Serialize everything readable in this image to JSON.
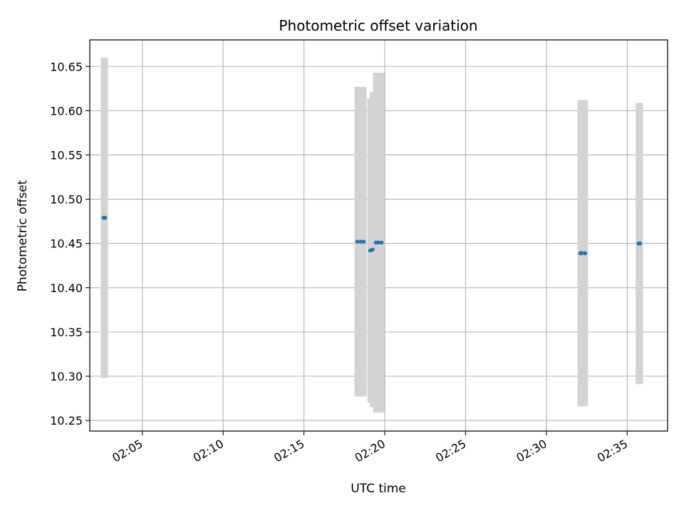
{
  "chart_data": {
    "type": "scatter",
    "title": "Photometric offset variation",
    "xlabel": "UTC time",
    "ylabel": "Photometric offset",
    "xlim": [
      "02:01:45",
      "02:37:30"
    ],
    "ylim": [
      10.238,
      10.68
    ],
    "x_ticks": [
      "02:05",
      "02:10",
      "02:15",
      "02:20",
      "02:25",
      "02:30",
      "02:35"
    ],
    "y_ticks": [
      "10.25",
      "10.30",
      "10.35",
      "10.40",
      "10.45",
      "10.50",
      "10.55",
      "10.60",
      "10.65"
    ],
    "grid": true,
    "marker_color": "#1f77b4",
    "errorbar_color": "#d3d3d3",
    "points": [
      {
        "x": "02:02:36",
        "y": 10.479,
        "yerr": 0.181
      },
      {
        "x": "02:02:42",
        "y": 10.479,
        "yerr": 0.181
      },
      {
        "x": "02:18:18",
        "y": 10.452,
        "yerr": 0.175
      },
      {
        "x": "02:18:30",
        "y": 10.452,
        "yerr": 0.175
      },
      {
        "x": "02:18:42",
        "y": 10.452,
        "yerr": 0.175
      },
      {
        "x": "02:19:06",
        "y": 10.442,
        "yerr": 0.172
      },
      {
        "x": "02:19:15",
        "y": 10.443,
        "yerr": 0.178
      },
      {
        "x": "02:19:27",
        "y": 10.451,
        "yerr": 0.192
      },
      {
        "x": "02:19:36",
        "y": 10.451,
        "yerr": 0.192
      },
      {
        "x": "02:19:48",
        "y": 10.451,
        "yerr": 0.192
      },
      {
        "x": "02:32:06",
        "y": 10.439,
        "yerr": 0.173
      },
      {
        "x": "02:32:12",
        "y": 10.439,
        "yerr": 0.173
      },
      {
        "x": "02:32:24",
        "y": 10.439,
        "yerr": 0.173
      },
      {
        "x": "02:35:42",
        "y": 10.45,
        "yerr": 0.159
      },
      {
        "x": "02:35:48",
        "y": 10.45,
        "yerr": 0.159
      }
    ]
  }
}
